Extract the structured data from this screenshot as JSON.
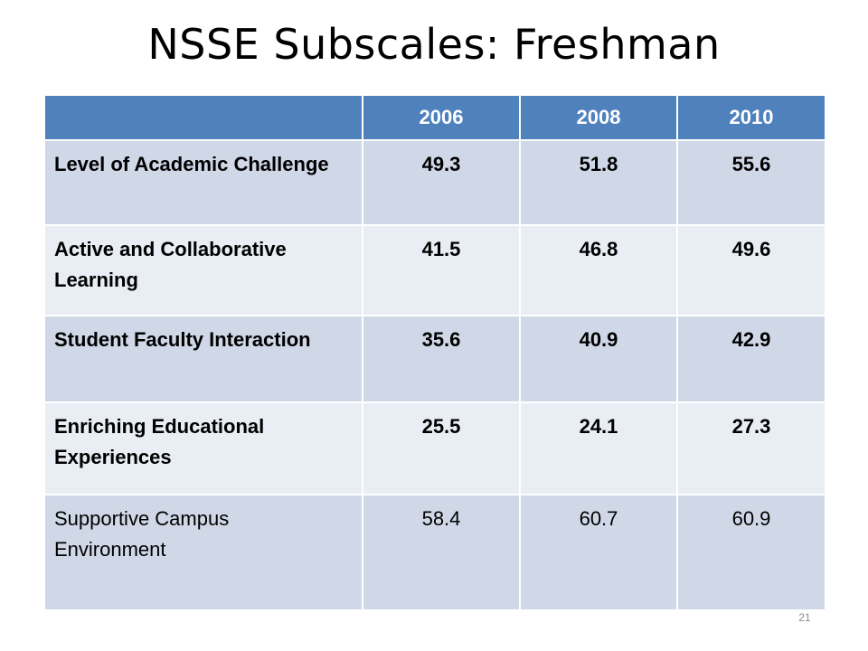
{
  "slide": {
    "title": "NSSE Subscales: Freshman",
    "page_number": "21"
  },
  "table": {
    "columns": [
      "",
      "2006",
      "2008",
      "2010"
    ],
    "rows": [
      {
        "label": "Level of Academic Challenge",
        "values": [
          "49.3",
          "51.8",
          "55.6"
        ]
      },
      {
        "label": "Active and Collaborative Learning",
        "values": [
          "41.5",
          "46.8",
          "49.6"
        ]
      },
      {
        "label": "Student Faculty Interaction",
        "values": [
          "35.6",
          "40.9",
          "42.9"
        ]
      },
      {
        "label": "Enriching Educational Experiences",
        "values": [
          "25.5",
          "24.1",
          "27.3"
        ]
      },
      {
        "label": "Supportive Campus Environment",
        "values": [
          "58.4",
          "60.7",
          "60.9"
        ]
      }
    ]
  },
  "colors": {
    "header_bg": "#4f81bd",
    "row_band_dark": "#d0d8e8",
    "row_band_light": "#e9edf4"
  }
}
